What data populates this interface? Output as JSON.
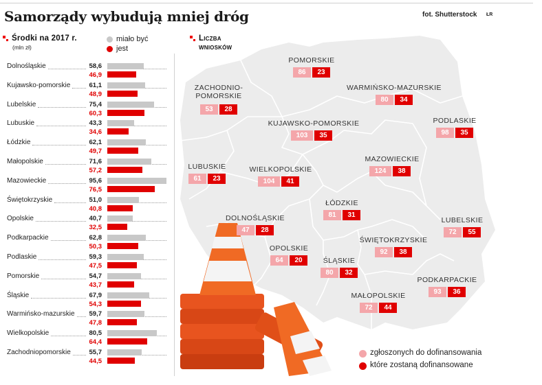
{
  "header": {
    "title": "Samorządy wybudują mniej dróg",
    "credit": "fot. Shutterstock",
    "initials": "ŁR"
  },
  "left_panel": {
    "title": "Środki na 2017 r.",
    "unit": "(mln zł)",
    "legend_planned": "miało być",
    "legend_actual": "jest"
  },
  "right_panel": {
    "title_line1": "Liczba",
    "title_line2": "wniosków",
    "legend_submitted": "zgłoszonych do dofinansowania",
    "legend_funded": "które zostaną dofinansowane"
  },
  "colors": {
    "planned": "#c8c8c8",
    "actual": "#e00000",
    "submitted": "#f4a6aa",
    "funded": "#e00000",
    "map": "#ececec"
  },
  "chart_data": [
    {
      "type": "bar",
      "title": "Środki na 2017 r.",
      "unit": "(mln zł)",
      "categories": [
        "Dolnośląskie",
        "Kujawsko-pomorskie",
        "Lubelskie",
        "Lubuskie",
        "Łódzkie",
        "Małopolskie",
        "Mazowieckie",
        "Świętokrzyskie",
        "Opolskie",
        "Podkarpackie",
        "Podlaskie",
        "Pomorskie",
        "Śląskie",
        "Warmińsko-mazurskie",
        "Wielkopolskie",
        "Zachodniopomorskie"
      ],
      "series": [
        {
          "name": "miało być",
          "values": [
            58.6,
            61.1,
            75.4,
            43.3,
            62.1,
            71.6,
            95.6,
            51.0,
            40.7,
            62.8,
            59.3,
            54.7,
            67.9,
            59.7,
            80.5,
            55.7
          ],
          "labels": [
            "58,6",
            "61,1",
            "75,4",
            "43,3",
            "62,1",
            "71,6",
            "95,6",
            "51,0",
            "40,7",
            "62,8",
            "59,3",
            "54,7",
            "67,9",
            "59,7",
            "80,5",
            "55,7"
          ]
        },
        {
          "name": "jest",
          "values": [
            46.9,
            48.9,
            60.3,
            34.6,
            49.7,
            57.2,
            76.5,
            40.8,
            32.5,
            50.3,
            47.5,
            43.7,
            54.3,
            47.8,
            64.4,
            44.5
          ],
          "labels": [
            "46,9",
            "48,9",
            "60,3",
            "34,6",
            "49,7",
            "57,2",
            "76,5",
            "40,8",
            "32,5",
            "50,3",
            "47,5",
            "43,7",
            "54,3",
            "47,8",
            "64,4",
            "44,5"
          ]
        }
      ],
      "legend": "top-right"
    },
    {
      "type": "map",
      "title": "Liczba wniosków",
      "regions": [
        {
          "name": "POMORSKIE",
          "submitted": 86,
          "funded": 23
        },
        {
          "name": "ZACHODNIO-POMORSKIE",
          "submitted": 53,
          "funded": 28
        },
        {
          "name": "WARMIŃSKO-MAZURSKIE",
          "submitted": 80,
          "funded": 34
        },
        {
          "name": "KUJAWSKO-POMORSKIE",
          "submitted": 103,
          "funded": 35
        },
        {
          "name": "PODLASKIE",
          "submitted": 98,
          "funded": 35
        },
        {
          "name": "MAZOWIECKIE",
          "submitted": 124,
          "funded": 38
        },
        {
          "name": "LUBUSKIE",
          "submitted": 61,
          "funded": 23
        },
        {
          "name": "WIELKOPOLSKIE",
          "submitted": 104,
          "funded": 41
        },
        {
          "name": "ŁÓDZKIE",
          "submitted": 81,
          "funded": 31
        },
        {
          "name": "DOLNOŚLĄSKIE",
          "submitted": 47,
          "funded": 28
        },
        {
          "name": "LUBELSKIE",
          "submitted": 72,
          "funded": 55
        },
        {
          "name": "OPOLSKIE",
          "submitted": 64,
          "funded": 20
        },
        {
          "name": "ŚWIĘTOKRZYSKIE",
          "submitted": 92,
          "funded": 38
        },
        {
          "name": "ŚLĄSKIE",
          "submitted": 80,
          "funded": 32
        },
        {
          "name": "PODKARPACKIE",
          "submitted": 93,
          "funded": 36
        },
        {
          "name": "MAŁOPOLSKIE",
          "submitted": 72,
          "funded": 44
        }
      ],
      "legend": "bottom-right"
    }
  ]
}
